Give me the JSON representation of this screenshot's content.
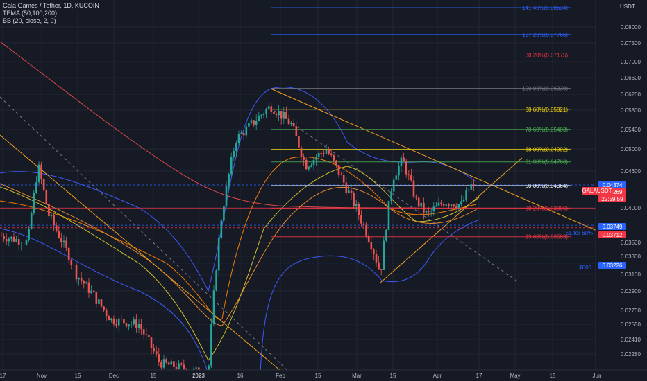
{
  "legend": {
    "title": "Gala Games / Tether, 1D, KUCOIN",
    "tema": "TEMA (50,100,200)",
    "bb": "BB (20, close, 2, 0)"
  },
  "currency": "USDT",
  "colors": {
    "bg": "#161a25",
    "grid": "#222633",
    "up": "#26a69a",
    "down": "#ef5350",
    "fib_blue": "#2962ff",
    "fib_red": "#f23645",
    "fib_yellow": "#f5d90a",
    "fib_green": "#4caf50",
    "fib_grey": "#787b86",
    "trend": "#f7a21b"
  },
  "chart_data": {
    "type": "candlestick",
    "symbol": "GALAUSDT",
    "exchange": "KUCOIN",
    "interval": "1D",
    "x_ticks": [
      "17",
      "Nov",
      "15",
      "Dec",
      "15",
      "2023",
      "16",
      "Feb",
      "15",
      "Mar",
      "15",
      "Apr",
      "17",
      "May",
      "15",
      "Jun"
    ],
    "y_ticks": [
      "0.08000",
      "0.07500",
      "0.07000",
      "0.06600",
      "0.06200",
      "0.05800",
      "0.05400",
      "0.05000",
      "0.04600",
      "0.04000",
      "0.03500",
      "0.03300",
      "0.03100",
      "0.02900",
      "0.02700",
      "0.02550",
      "0.02410",
      "0.02280"
    ],
    "fib_levels": [
      {
        "label": "141.40%(0.08634)",
        "price": 0.08634,
        "color": "#2962ff"
      },
      {
        "label": "127.20%(0.07766)",
        "price": 0.07766,
        "color": "#2962ff"
      },
      {
        "label": "38.20%(0.07175)",
        "price": 0.07175,
        "color": "#f23645"
      },
      {
        "label": "100.00%(0.06339)",
        "price": 0.06339,
        "color": "#787b86"
      },
      {
        "label": "88.60%(0.05821)",
        "price": 0.05821,
        "color": "#f5d90a"
      },
      {
        "label": "78.60%(0.05403)",
        "price": 0.05403,
        "color": "#4caf50"
      },
      {
        "label": "68.00%(0.04992)",
        "price": 0.04992,
        "color": "#f5d90a"
      },
      {
        "label": "61.80%(0.04766)",
        "price": 0.04766,
        "color": "#4caf50"
      },
      {
        "label": "50.00%(0.04364)",
        "price": 0.04364,
        "color": "#ffffff"
      },
      {
        "label": "38.20%(0.03996)",
        "price": 0.03996,
        "color": "#f23645"
      },
      {
        "label": "23.60%(0.03583)",
        "price": 0.03583,
        "color": "#f23645"
      }
    ],
    "price_tags": [
      {
        "value": "0.04374",
        "color": "#2962ff"
      },
      {
        "value": "0.04269",
        "color": "#f23645"
      },
      {
        "value": "22:59:59",
        "color": "#f23645"
      },
      {
        "value": "0.03749",
        "color": "#2962ff"
      },
      {
        "value": "0.03712",
        "color": "#f23645"
      },
      {
        "value": "0.03226",
        "color": "#2962ff"
      }
    ],
    "annotations": [
      "SL for 60%",
      "$600"
    ],
    "last_price": 0.04269,
    "countdown": "22:59:59"
  }
}
